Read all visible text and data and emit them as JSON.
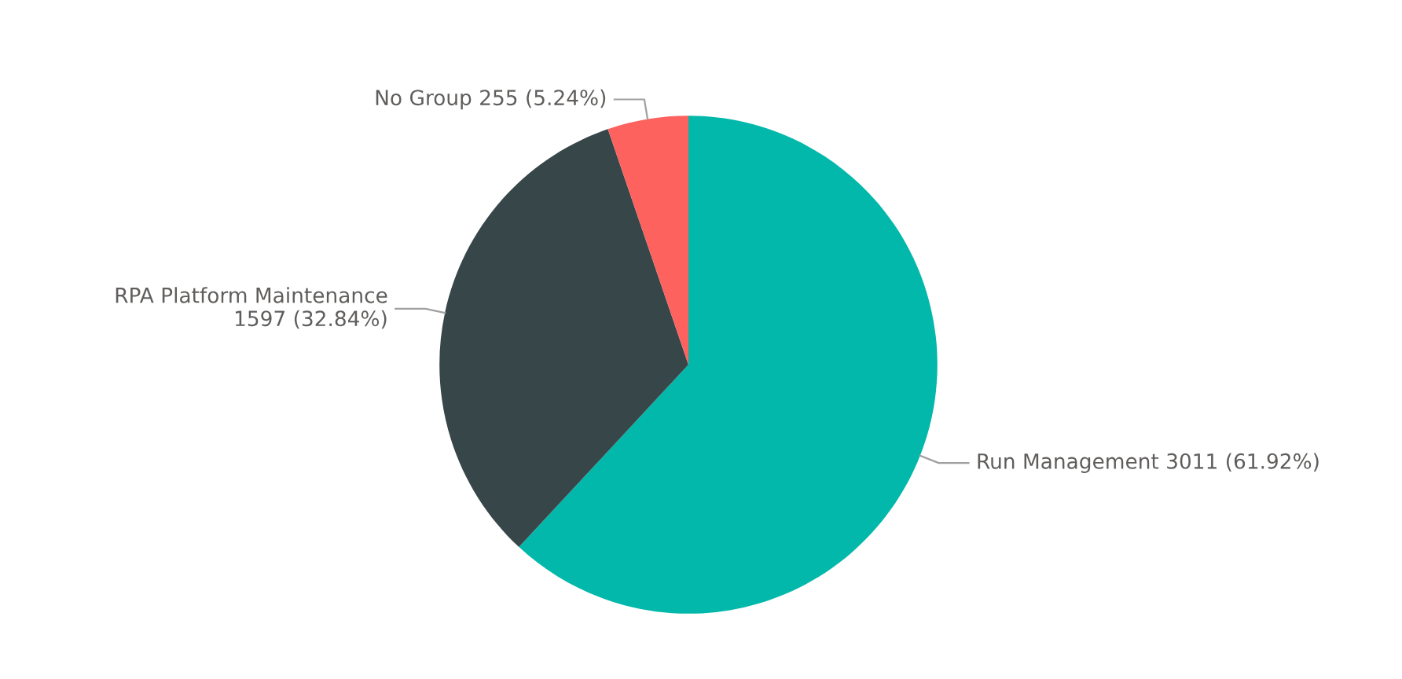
{
  "chart_data": {
    "type": "pie",
    "categories": [
      "Run Management",
      "RPA Platform Maintenance",
      "No Group"
    ],
    "values": [
      3011,
      1597,
      255
    ],
    "colors": [
      "#01b8aa",
      "#374649",
      "#fd625e"
    ],
    "value_labels": [
      "3011 (61.92%)",
      "1597 (32.84%)",
      "255 (5.24%)"
    ],
    "legend": false
  }
}
